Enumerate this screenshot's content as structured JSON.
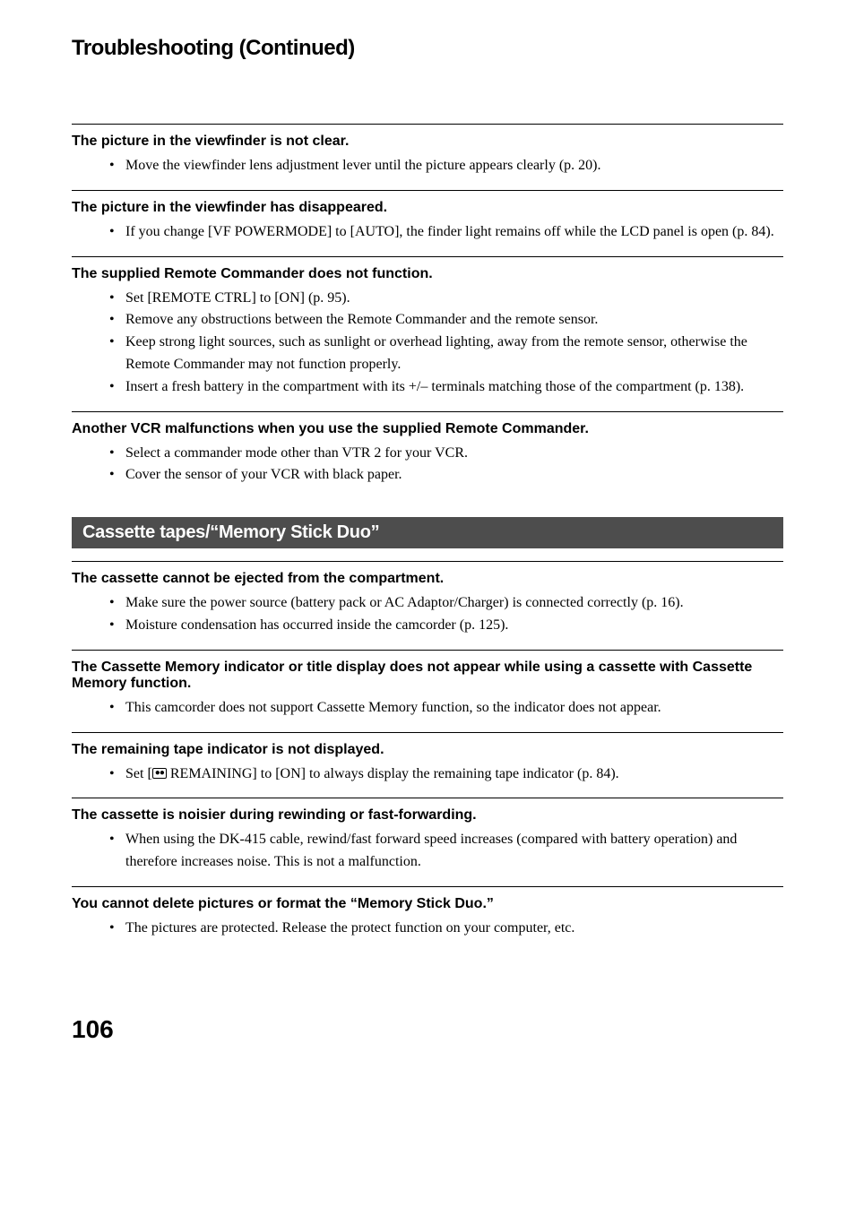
{
  "page": {
    "title_main": "Troubleshooting",
    "title_suffix": "(Continued)",
    "page_number": "106"
  },
  "issues_top": [
    {
      "heading": "The picture in the viewfinder is not clear.",
      "bullets": [
        "Move the viewfinder lens adjustment lever until the picture appears clearly (p. 20)."
      ]
    },
    {
      "heading": "The picture in the viewfinder has disappeared.",
      "bullets": [
        "If you change [VF POWERMODE] to [AUTO], the finder light remains off while the LCD panel is open (p. 84)."
      ]
    },
    {
      "heading": "The supplied Remote Commander does not function.",
      "bullets": [
        "Set [REMOTE CTRL] to [ON] (p. 95).",
        "Remove any obstructions between the Remote Commander and the remote sensor.",
        "Keep strong light sources, such as sunlight or overhead lighting, away from the remote sensor, otherwise the Remote Commander may not function properly.",
        "Insert a fresh battery in the compartment with its +/– terminals matching those of the compartment (p. 138)."
      ]
    },
    {
      "heading": "Another VCR malfunctions when you use the supplied Remote Commander.",
      "bullets": [
        "Select a commander mode other than VTR 2 for your VCR.",
        "Cover the sensor of your VCR with black paper."
      ]
    }
  ],
  "section_bar": {
    "label": "Cassette tapes/“Memory Stick Duo”"
  },
  "issues_bottom": [
    {
      "heading": "The cassette cannot be ejected from the compartment.",
      "bullets": [
        "Make sure the power source (battery pack or AC Adaptor/Charger) is connected correctly (p. 16).",
        "Moisture condensation has occurred inside the camcorder (p. 125)."
      ]
    },
    {
      "heading": "The Cassette Memory indicator or title display does not appear while using a cassette with Cassette Memory function.",
      "bullets": [
        "This camcorder does not support Cassette Memory function, so the indicator does not appear."
      ]
    },
    {
      "heading": "The remaining tape indicator is not displayed.",
      "bullets_html": [
        "Set [<span class=\"tape-icon\"><span class=\"tape-icon-inner\">&#9679;&#9679;</span></span> REMAINING] to [ON] to always display the remaining tape indicator (p. 84)."
      ]
    },
    {
      "heading": "The cassette is noisier during rewinding or fast-forwarding.",
      "bullets": [
        "When using the DK-415 cable, rewind/fast forward speed increases (compared with battery operation) and therefore increases noise. This is not a malfunction."
      ]
    },
    {
      "heading": "You cannot delete pictures or format the “Memory Stick Duo.”",
      "bullets": [
        "The pictures are protected. Release the protect function on your computer, etc."
      ]
    }
  ]
}
